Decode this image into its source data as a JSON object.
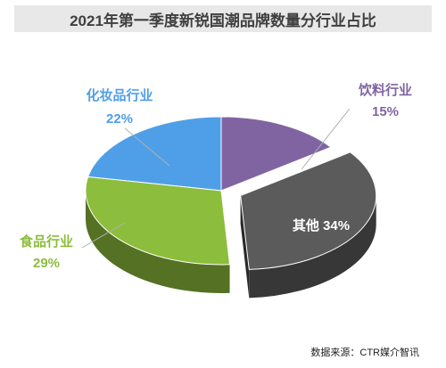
{
  "title": "2021年第一季度新锐国潮品牌数量分行业占比",
  "source": "数据来源：CTR媒介智讯",
  "chart_data": {
    "type": "pie",
    "title": "2021年第一季度新锐国潮品牌数量分行业占比",
    "legend": "none",
    "slices": [
      {
        "label": "饮料行业",
        "value": 15,
        "value_text": "15%",
        "color": "#8064a2"
      },
      {
        "label": "其他",
        "value": 34,
        "value_text": "34%",
        "color": "#5b5b5b"
      },
      {
        "label": "食品行业",
        "value": 29,
        "value_text": "29%",
        "color": "#8cbd3c"
      },
      {
        "label": "化妆品行业",
        "value": 22,
        "value_text": "22%",
        "color": "#4f9fe8"
      }
    ]
  }
}
